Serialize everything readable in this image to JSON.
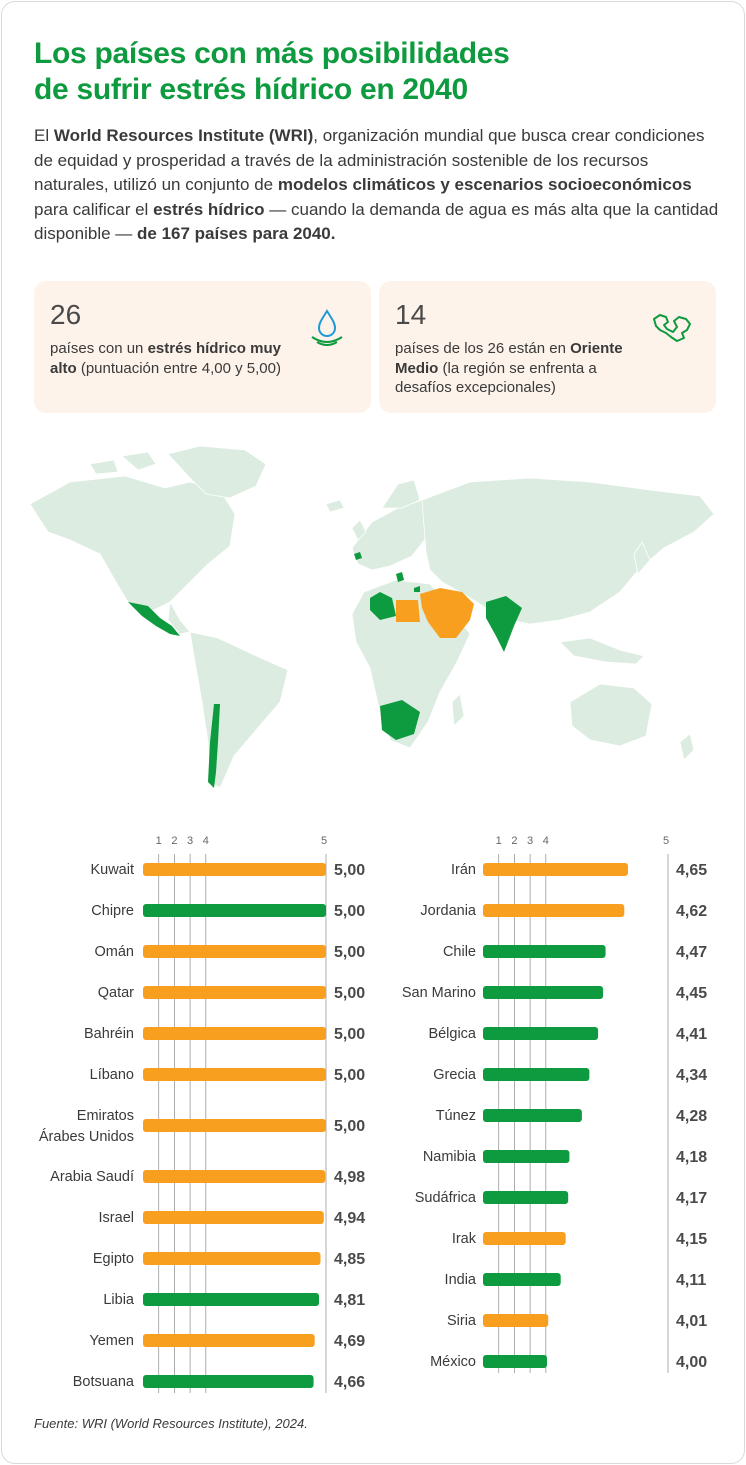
{
  "header": {
    "title_line1": "Los países con más posibilidades",
    "title_line2_pre": "de sufrir ",
    "title_line2_bold": "estrés hídrico en 2040",
    "intro": [
      {
        "t": "El ",
        "b": false
      },
      {
        "t": "World Resources Institute (WRI)",
        "b": true
      },
      {
        "t": ", organización mundial que busca crear condiciones de equidad y prosperidad a través de la administración sostenible de los recursos naturales, utilizó un conjunto de ",
        "b": false
      },
      {
        "t": "modelos climáticos y escenarios socioeconómicos",
        "b": true
      },
      {
        "t": " para calificar el ",
        "b": false
      },
      {
        "t": "estrés hídrico",
        "b": true
      },
      {
        "t": " — cuando la demanda de agua es más alta que la cantidad disponible — ",
        "b": false
      },
      {
        "t": "de 167 países para 2040.",
        "b": true
      }
    ]
  },
  "stats": [
    {
      "number": "26",
      "icon": "water-drop-icon",
      "text": [
        {
          "t": "países con un ",
          "b": false
        },
        {
          "t": "estrés hídrico muy alto",
          "b": true
        },
        {
          "t": " (puntuación entre 4,00 y 5,00)",
          "b": false
        }
      ]
    },
    {
      "number": "14",
      "icon": "middle-east-map-icon",
      "text": [
        {
          "t": "países de los 26 están en ",
          "b": false
        },
        {
          "t": "Oriente Medio",
          "b": true
        },
        {
          "t": " (la región se enfrenta a desafíos excepcionales)",
          "b": false
        }
      ]
    }
  ],
  "colors": {
    "title_green": "#0e9a3e",
    "bar_orange": "#f99f1f",
    "bar_green": "#0e9a3e",
    "map_land": "#dcece0",
    "stat_bg": "#fdf3ea"
  },
  "chart_data": [
    {
      "type": "bar",
      "orientation": "horizontal",
      "x_ticks": [
        1,
        2,
        3,
        4,
        5
      ],
      "xlim": [
        0,
        5
      ],
      "categories": [
        "Kuwait",
        "Chipre",
        "Omán",
        "Qatar",
        "Bahréin",
        "Líbano",
        "Emiratos Árabes Unidos",
        "Arabia Saudí",
        "Israel",
        "Egipto",
        "Libia",
        "Yemen",
        "Botsuana"
      ],
      "values": [
        5.0,
        5.0,
        5.0,
        5.0,
        5.0,
        5.0,
        5.0,
        4.98,
        4.94,
        4.85,
        4.81,
        4.69,
        4.66
      ],
      "value_labels": [
        "5,00",
        "5,00",
        "5,00",
        "5,00",
        "5,00",
        "5,00",
        "5,00",
        "4,98",
        "4,94",
        "4,85",
        "4,81",
        "4,69",
        "4,66"
      ],
      "colors": [
        "#f99f1f",
        "#0e9a3e",
        "#f99f1f",
        "#f99f1f",
        "#f99f1f",
        "#f99f1f",
        "#f99f1f",
        "#f99f1f",
        "#f99f1f",
        "#f99f1f",
        "#0e9a3e",
        "#f99f1f",
        "#0e9a3e"
      ]
    },
    {
      "type": "bar",
      "orientation": "horizontal",
      "x_ticks": [
        1,
        2,
        3,
        4,
        5
      ],
      "xlim": [
        0,
        5
      ],
      "categories": [
        "Irán",
        "Jordania",
        "Chile",
        "San Marino",
        "Bélgica",
        "Grecia",
        "Túnez",
        "Namibia",
        "Sudáfrica",
        "Irak",
        "India",
        "Siria",
        "México"
      ],
      "values": [
        4.65,
        4.62,
        4.47,
        4.45,
        4.41,
        4.34,
        4.28,
        4.18,
        4.17,
        4.15,
        4.11,
        4.01,
        4.0
      ],
      "value_labels": [
        "4,65",
        "4,62",
        "4,47",
        "4,45",
        "4,41",
        "4,34",
        "4,28",
        "4,18",
        "4,17",
        "4,15",
        "4,11",
        "4,01",
        "4,00"
      ],
      "colors": [
        "#f99f1f",
        "#f99f1f",
        "#0e9a3e",
        "#0e9a3e",
        "#0e9a3e",
        "#0e9a3e",
        "#0e9a3e",
        "#0e9a3e",
        "#0e9a3e",
        "#f99f1f",
        "#0e9a3e",
        "#f99f1f",
        "#0e9a3e"
      ]
    }
  ],
  "source": "Fuente: WRI (World Resources Institute), 2024."
}
